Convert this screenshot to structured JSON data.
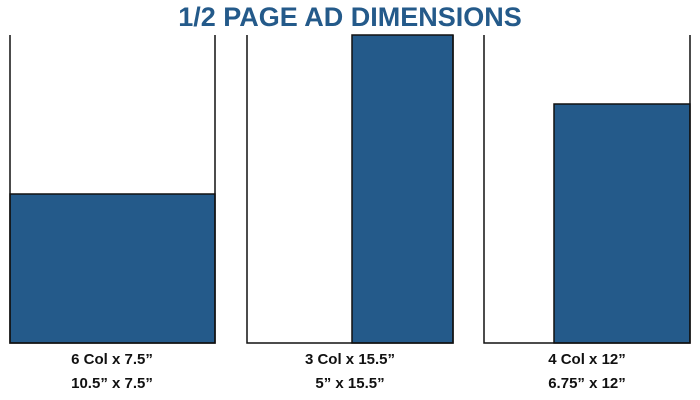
{
  "header": {
    "title": "1/2 PAGE AD DIMENSIONS"
  },
  "panels": [
    {
      "columns": "6 Col x 7.5”",
      "inches": "10.5” x 7.5”"
    },
    {
      "columns": "3 Col x 15.5”",
      "inches": "5” x 15.5”"
    },
    {
      "columns": "4 Col x 12”",
      "inches": "6.75” x 12”"
    }
  ]
}
